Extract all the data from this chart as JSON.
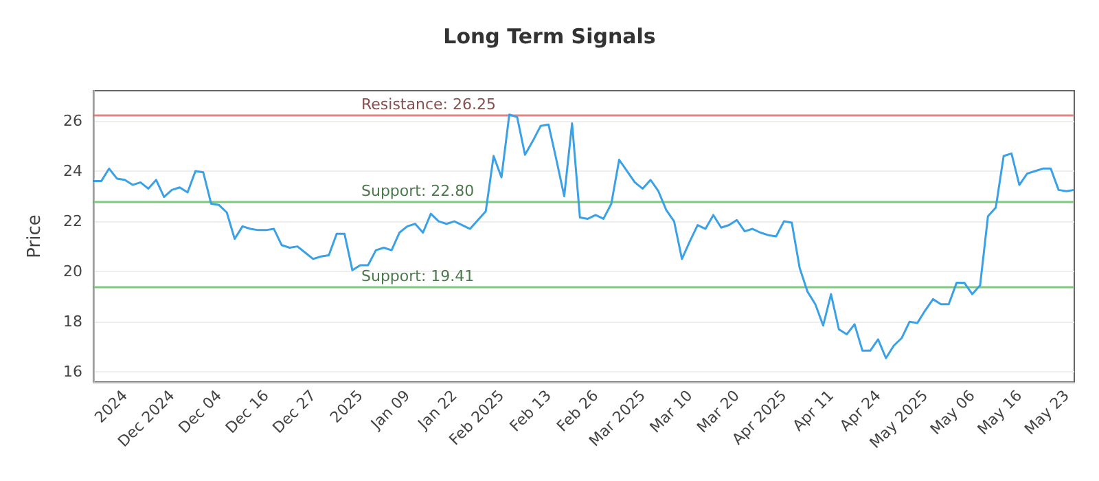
{
  "chart_data": {
    "type": "line",
    "title": "Long Term Signals",
    "ylabel": "Price",
    "categories": [
      null,
      null,
      null,
      null,
      "2024",
      null,
      null,
      null,
      null,
      null,
      "Dec 2024",
      null,
      null,
      null,
      null,
      null,
      "Dec 04",
      null,
      null,
      null,
      null,
      null,
      "Dec 16",
      null,
      null,
      null,
      null,
      null,
      "Dec 27",
      null,
      null,
      null,
      null,
      null,
      "2025",
      null,
      null,
      null,
      null,
      null,
      "Jan 09",
      null,
      null,
      null,
      null,
      null,
      "Jan 22",
      null,
      null,
      null,
      null,
      null,
      "Feb 2025",
      null,
      null,
      null,
      null,
      null,
      "Feb 13",
      null,
      null,
      null,
      null,
      null,
      "Feb 26",
      null,
      null,
      null,
      null,
      null,
      "Mar 2025",
      null,
      null,
      null,
      null,
      null,
      "Mar 10",
      null,
      null,
      null,
      null,
      null,
      "Mar 20",
      null,
      null,
      null,
      null,
      null,
      "Apr 2025",
      null,
      null,
      null,
      null,
      null,
      "Apr 11",
      null,
      null,
      null,
      null,
      null,
      "Apr 24",
      null,
      null,
      null,
      null,
      null,
      "May 2025",
      null,
      null,
      null,
      null,
      null,
      "May 06",
      null,
      null,
      null,
      null,
      null,
      "May 16",
      null,
      null,
      null,
      null,
      null,
      "May 23",
      null
    ],
    "series": [
      {
        "color": "#3ba1e6",
        "values": [
          23.6,
          23.6,
          24.1,
          23.7,
          23.65,
          23.45,
          23.55,
          23.3,
          23.65,
          22.97,
          23.25,
          23.35,
          23.15,
          24.0,
          23.95,
          22.7,
          22.65,
          22.35,
          21.3,
          21.8,
          21.7,
          21.65,
          21.65,
          21.7,
          21.05,
          20.95,
          21.0,
          20.75,
          20.5,
          20.6,
          20.65,
          21.5,
          21.5,
          20.05,
          20.25,
          20.25,
          20.85,
          20.95,
          20.85,
          21.55,
          21.8,
          21.9,
          21.55,
          22.3,
          22.0,
          21.9,
          22.0,
          21.85,
          21.7,
          22.05,
          22.4,
          24.6,
          23.75,
          26.25,
          26.15,
          24.65,
          25.2,
          25.8,
          25.85,
          24.45,
          23.0,
          25.9,
          22.15,
          22.1,
          22.25,
          22.1,
          22.7,
          24.45,
          24.0,
          23.55,
          23.3,
          23.65,
          23.2,
          22.45,
          22.0,
          20.5,
          21.2,
          21.85,
          21.7,
          22.25,
          21.75,
          21.85,
          22.05,
          21.6,
          21.7,
          21.55,
          21.45,
          21.4,
          22.0,
          21.95,
          20.15,
          19.2,
          18.7,
          17.85,
          19.1,
          17.7,
          17.5,
          17.9,
          16.85,
          16.85,
          17.3,
          16.55,
          17.05,
          17.35,
          18.0,
          17.95,
          18.45,
          18.9,
          18.7,
          18.7,
          19.55,
          19.55,
          19.1,
          19.45,
          22.2,
          22.55,
          24.6,
          24.7,
          23.45,
          23.9,
          24.0,
          24.1,
          24.1,
          23.25,
          23.2,
          23.25
        ]
      }
    ],
    "ylim": [
      15.6,
      27.2
    ],
    "yticks": [
      16,
      18,
      20,
      22,
      24,
      26
    ],
    "grid": "y",
    "marker": "none",
    "line_style": "solid",
    "ref_lines": [
      {
        "axis": "y",
        "value": 26.25,
        "label": "Resistance: 26.25",
        "color": "#e08585"
      },
      {
        "axis": "y",
        "value": 22.8,
        "label": "Support: 22.80",
        "color": "#7fc97f"
      },
      {
        "axis": "y",
        "value": 19.41,
        "label": "Support: 19.41",
        "color": "#7fc97f"
      }
    ]
  }
}
